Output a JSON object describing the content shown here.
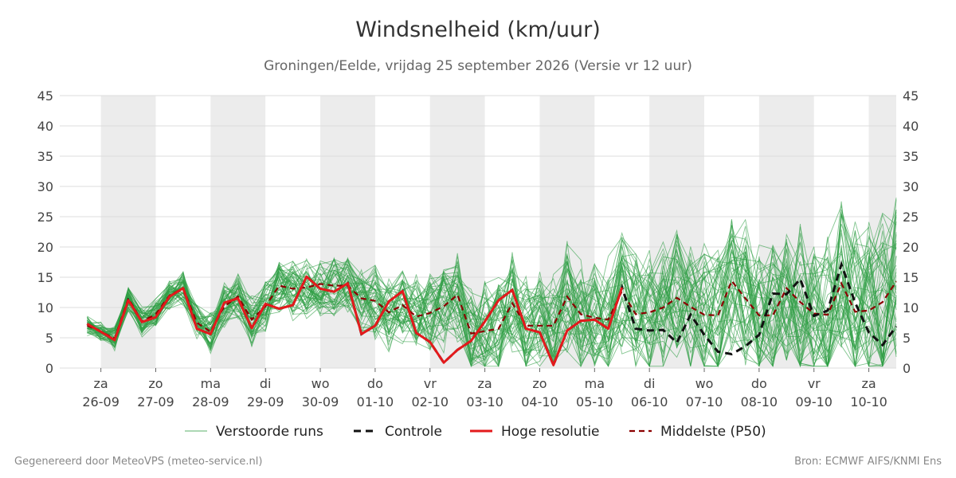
{
  "header": {
    "title": "Windsnelheid (km/uur)",
    "subtitle": "Groningen/Eelde, vrijdag 25 september 2026 (Versie vr 12 uur)"
  },
  "footer": {
    "left": "Gegenereerd door MeteoVPS (meteo-service.nl)",
    "right": "Bron: ECMWF AIFS/KNMI Ens"
  },
  "chart_data": {
    "type": "line",
    "title": "Windsnelheid (km/uur)",
    "subtitle": "Groningen/Eelde, vrijdag 25 september 2026 (Versie vr 12 uur)",
    "xlabel": "",
    "ylabel": "",
    "x_unit": "days",
    "xlim": [
      -0.75,
      14.5
    ],
    "ylim": [
      0,
      45
    ],
    "yticks": [
      0,
      5,
      10,
      15,
      20,
      25,
      30,
      35,
      40,
      45
    ],
    "x_ticks": [
      {
        "x": 0,
        "day": "za",
        "date": "26-09"
      },
      {
        "x": 1,
        "day": "zo",
        "date": "27-09"
      },
      {
        "x": 2,
        "day": "ma",
        "date": "28-09"
      },
      {
        "x": 3,
        "day": "di",
        "date": "29-09"
      },
      {
        "x": 4,
        "day": "wo",
        "date": "30-09"
      },
      {
        "x": 5,
        "day": "do",
        "date": "01-10"
      },
      {
        "x": 6,
        "day": "vr",
        "date": "02-10"
      },
      {
        "x": 7,
        "day": "za",
        "date": "03-10"
      },
      {
        "x": 8,
        "day": "zo",
        "date": "04-10"
      },
      {
        "x": 9,
        "day": "ma",
        "date": "05-10"
      },
      {
        "x": 10,
        "day": "di",
        "date": "06-10"
      },
      {
        "x": 11,
        "day": "wo",
        "date": "07-10"
      },
      {
        "x": 12,
        "day": "do",
        "date": "08-10"
      },
      {
        "x": 13,
        "day": "vr",
        "date": "09-10"
      },
      {
        "x": 14,
        "day": "za",
        "date": "10-10"
      }
    ],
    "grid": true,
    "right_axis": true,
    "night_shading": true,
    "legend_position": "bottom",
    "legend": [
      "Verstoorde runs",
      "Controle",
      "Hoge resolutie",
      "Middelste (P50)"
    ],
    "colors": {
      "ensemble": "#2e9e44",
      "controle": "#111111",
      "hoge_resolutie": "#e31a1c",
      "p50": "#8b0000",
      "night": "#ececec",
      "grid": "#dddddd"
    },
    "controle": {
      "name": "Controle",
      "x": [
        -0.25,
        0,
        0.25,
        0.5,
        0.75,
        1,
        1.25,
        1.5,
        1.75,
        2,
        2.25,
        2.5,
        2.75,
        3,
        3.25,
        3.5,
        3.75,
        4,
        4.25,
        4.5,
        4.75,
        5,
        5.25,
        5.5,
        5.75,
        6,
        6.25,
        6.5,
        6.75,
        7,
        7.25,
        7.5,
        7.75,
        8,
        8.25,
        8.5,
        8.75,
        9,
        9.25,
        9.5,
        9.75,
        10,
        10.25,
        10.5,
        10.75,
        11,
        11.25,
        11.5,
        11.75,
        12,
        12.25,
        12.5,
        12.75,
        13,
        13.25,
        13.5,
        13.75,
        14,
        14.25,
        14.5
      ],
      "y": [
        7.3,
        6,
        4.6,
        11.2,
        7.6,
        8.4,
        11.8,
        13.2,
        6.5,
        5.6,
        10.8,
        11.5,
        6.6,
        10.6,
        9.8,
        10.4,
        15.1,
        13.1,
        12.6,
        14,
        5.6,
        7,
        11,
        12.7,
        5.8,
        4.3,
        0.9,
        3,
        4.5,
        7.7,
        11.2,
        12.9,
        6.5,
        5.9,
        0.5,
        6.2,
        7.8,
        8,
        6.5,
        13.3,
        6.5,
        6.2,
        6.3,
        4.2,
        8.8,
        5.5,
        2.7,
        2.3,
        3.6,
        5.5,
        12.3,
        12.2,
        14.7,
        8.6,
        9.5,
        17.1,
        10.8,
        5.9,
        3.8,
        6.9
      ]
    },
    "hoge_resolutie": {
      "name": "Hoge resolutie",
      "x": [
        -0.25,
        0,
        0.25,
        0.5,
        0.75,
        1,
        1.25,
        1.5,
        1.75,
        2,
        2.25,
        2.5,
        2.75,
        3,
        3.25,
        3.5,
        3.75,
        4,
        4.25,
        4.5,
        4.75,
        5,
        5.25,
        5.5,
        5.75,
        6,
        6.25,
        6.5,
        6.75,
        7,
        7.25,
        7.5,
        7.75,
        8,
        8.25,
        8.5,
        8.75,
        9,
        9.25,
        9.5
      ],
      "y": [
        7.3,
        6,
        4.6,
        11.2,
        7.6,
        8.4,
        11.8,
        13.2,
        6.5,
        5.6,
        10.8,
        11.5,
        6.6,
        10.6,
        9.8,
        10.4,
        15.1,
        13.1,
        12.6,
        14,
        5.6,
        7,
        11,
        12.7,
        5.8,
        4.3,
        0.9,
        3,
        4.5,
        7.7,
        11.2,
        12.9,
        6.5,
        5.9,
        0.5,
        6.2,
        7.8,
        8,
        6.5,
        13.3
      ]
    },
    "p50": {
      "name": "Middelste (P50)",
      "x": [
        -0.25,
        0,
        0.25,
        0.5,
        0.75,
        1,
        1.25,
        1.5,
        1.75,
        2,
        2.25,
        2.5,
        2.75,
        3,
        3.25,
        3.5,
        3.75,
        4,
        4.25,
        4.5,
        4.75,
        5,
        5.25,
        5.5,
        5.75,
        6,
        6.25,
        6.5,
        6.75,
        7,
        7.25,
        7.5,
        7.75,
        8,
        8.25,
        8.5,
        8.75,
        9,
        9.25,
        9.5,
        9.75,
        10,
        10.25,
        10.5,
        10.75,
        11,
        11.25,
        11.5,
        11.75,
        12,
        12.25,
        12.5,
        12.75,
        13,
        13.25,
        13.5,
        13.75,
        14,
        14.25,
        14.5
      ],
      "y": [
        7,
        6,
        4.9,
        11.5,
        7.7,
        8.9,
        12,
        13.2,
        7.5,
        6,
        10.2,
        11.8,
        8,
        10.2,
        13.6,
        13.1,
        13.3,
        13.9,
        13.6,
        13.6,
        11.5,
        11.1,
        9.2,
        10.4,
        8.5,
        9.1,
        10.2,
        12.1,
        5.7,
        6.1,
        6.5,
        10.7,
        7,
        7,
        7,
        11.8,
        8.9,
        8.3,
        8,
        12.7,
        8.9,
        9.2,
        10,
        11.6,
        10.1,
        8.8,
        8.7,
        14.4,
        11.5,
        8.7,
        8.7,
        13.2,
        10.9,
        9,
        8.8,
        14,
        9.3,
        9.5,
        10.9,
        14.3
      ]
    },
    "ensemble_count": 50,
    "ensemble_note": "Verstoorde runs"
  }
}
